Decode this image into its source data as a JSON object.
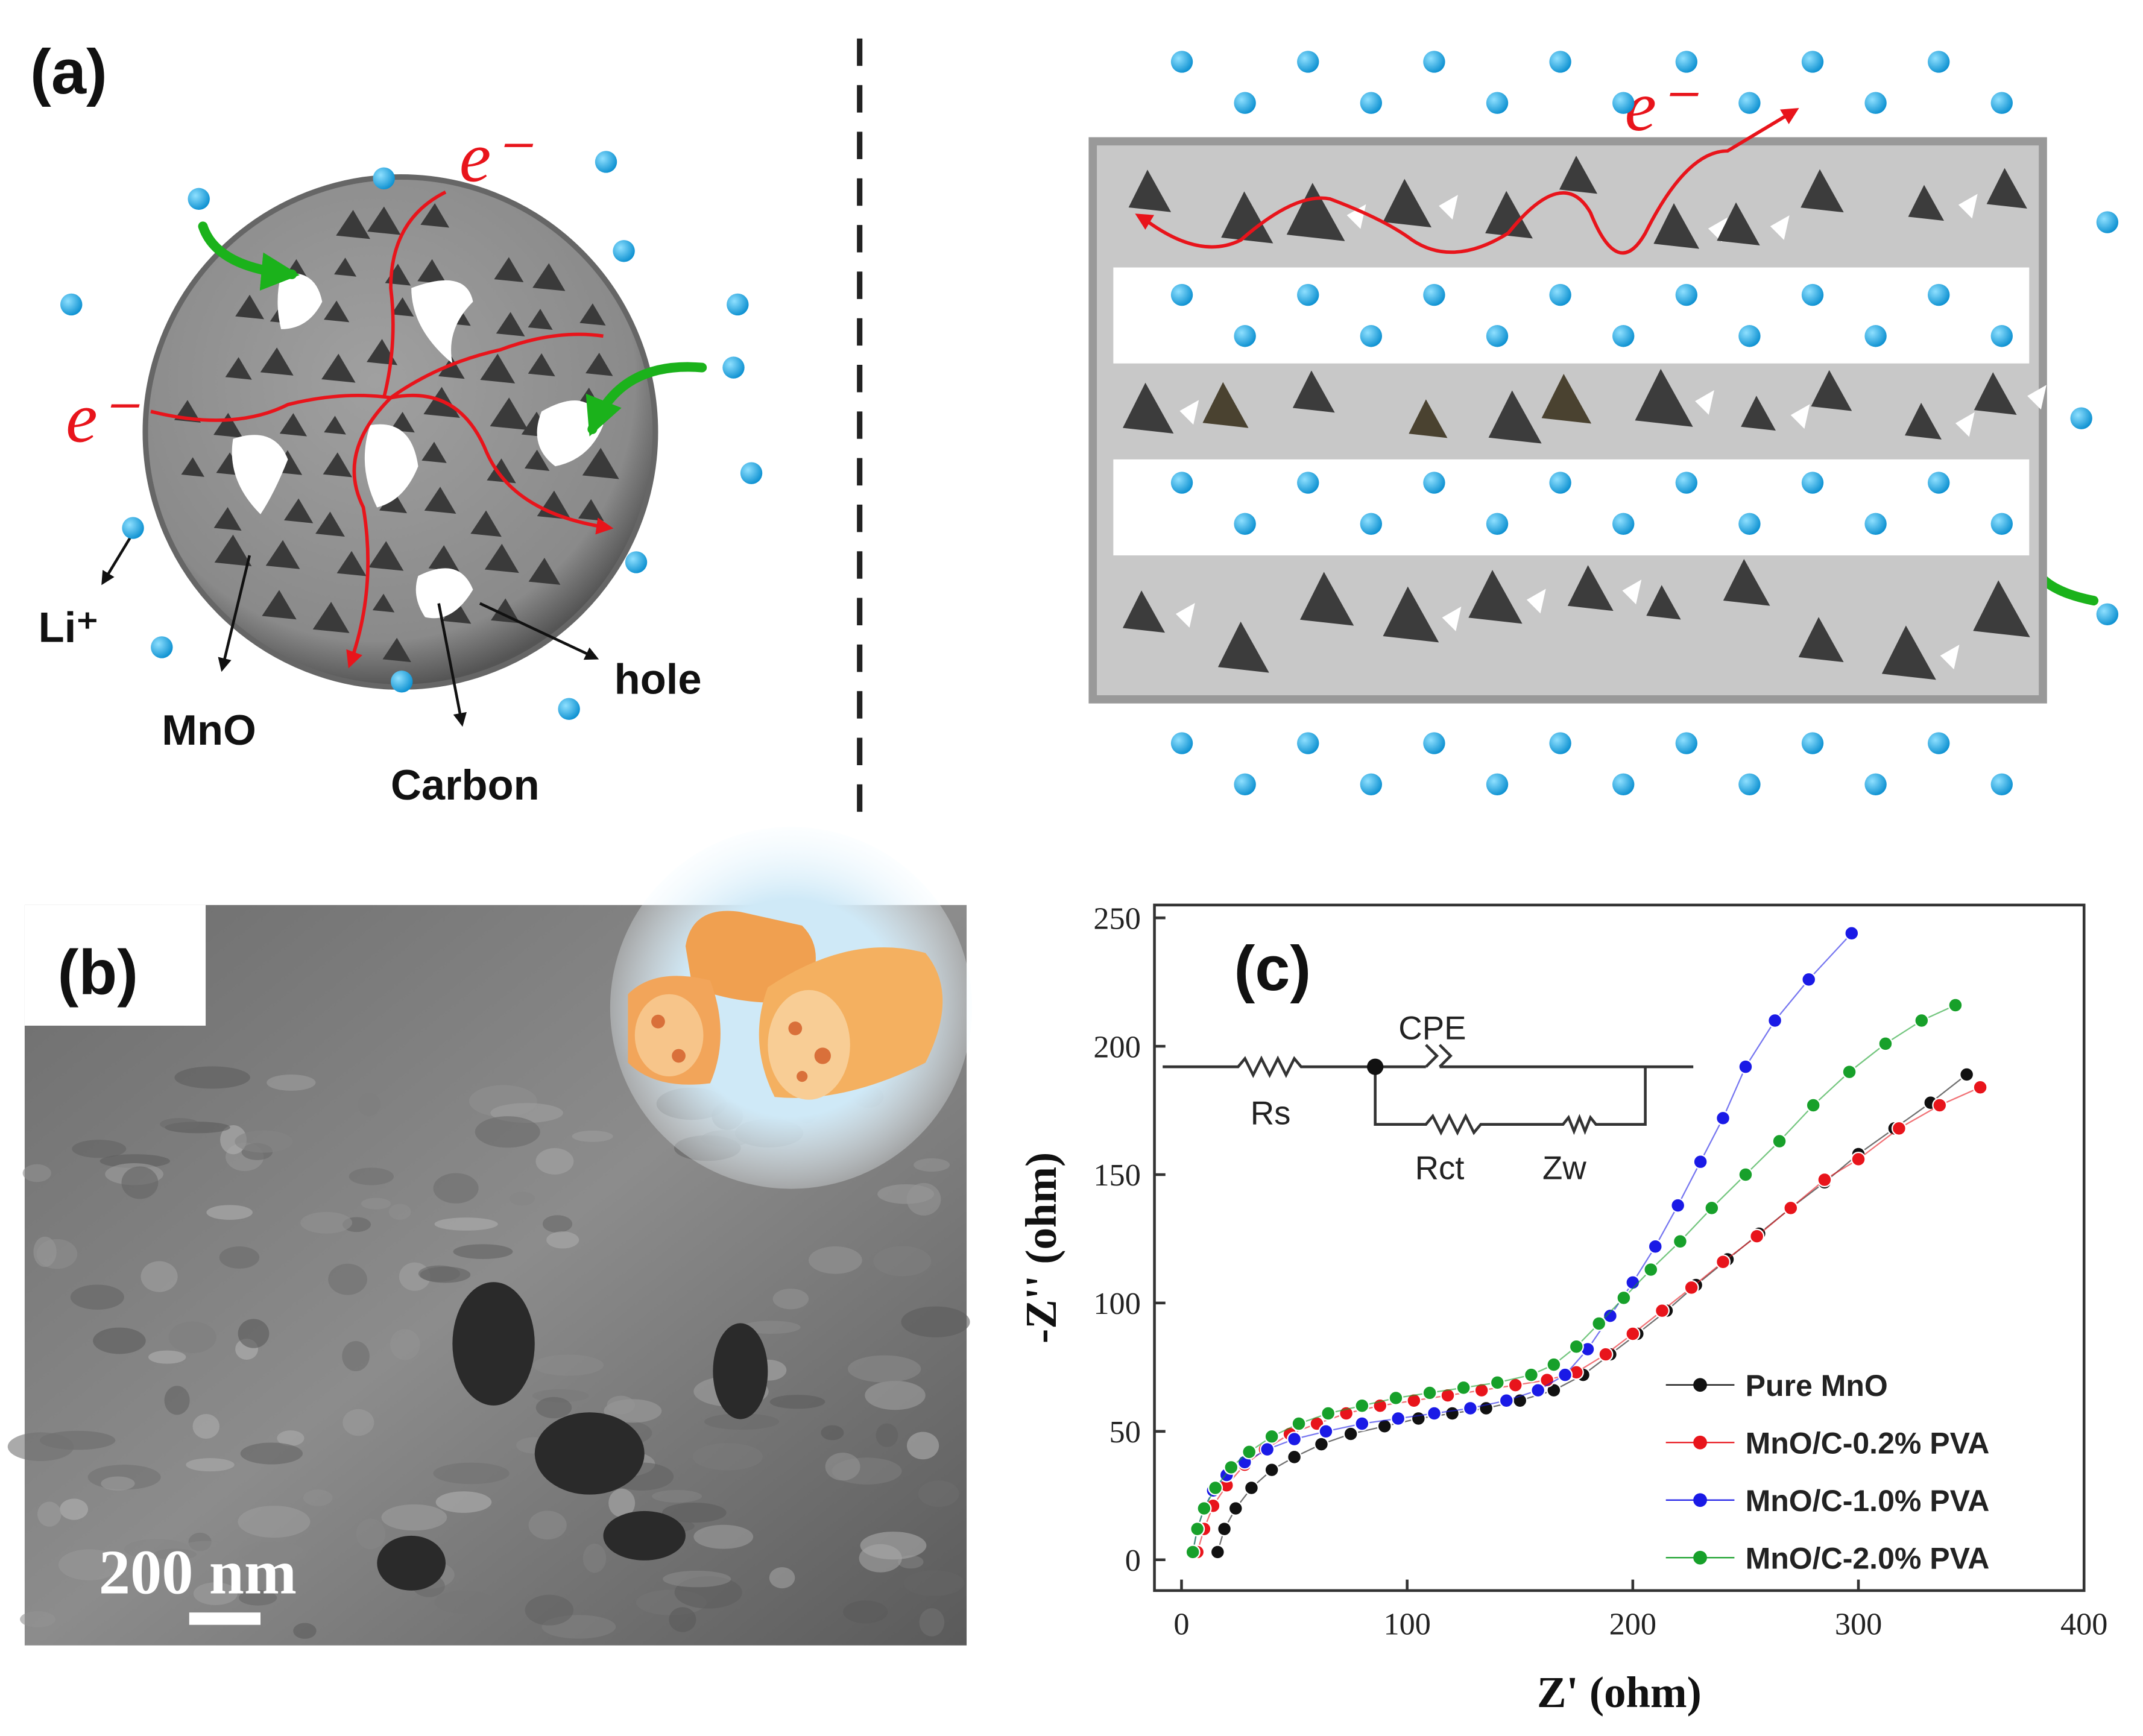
{
  "panels": {
    "a": {
      "label": "(a)",
      "electron_labels": [
        "e⁻",
        "e⁻",
        "e⁻"
      ],
      "li_label": "Li⁺",
      "mno_label": "MnO",
      "carbon_label": "Carbon",
      "hole_label": "hole"
    },
    "b": {
      "label": "(b)",
      "scale_bar": "200 nm"
    }
  },
  "chart_data": {
    "type": "line",
    "panel_label": "(c)",
    "xlabel": "Z' (ohm)",
    "ylabel": "-Z'' (ohm)",
    "circuit_labels": [
      "Rs",
      "CPE",
      "Rct",
      "Zw"
    ],
    "xlim": [
      -12,
      400
    ],
    "ylim": [
      -12,
      255
    ],
    "xticks": [
      0,
      100,
      200,
      300,
      400
    ],
    "yticks": [
      0,
      50,
      100,
      150,
      200,
      250
    ],
    "legend": "lower right",
    "markers": true,
    "series": [
      {
        "name": "Pure MnO",
        "color": "#111111",
        "x": [
          16,
          19,
          24,
          31,
          40,
          50,
          62,
          75,
          90,
          105,
          120,
          135,
          150,
          165,
          178,
          190,
          202,
          215,
          228,
          242,
          256,
          270,
          285,
          300,
          316,
          332,
          348
        ],
        "values": [
          3,
          12,
          20,
          28,
          35,
          40,
          45,
          49,
          52,
          55,
          57,
          59,
          62,
          66,
          72,
          80,
          88,
          97,
          107,
          117,
          127,
          137,
          147,
          158,
          168,
          178,
          189
        ]
      },
      {
        "name": "MnO/C-0.2% PVA",
        "color": "#e8141b",
        "x": [
          7,
          10,
          14,
          20,
          28,
          37,
          48,
          60,
          73,
          88,
          103,
          118,
          133,
          148,
          162,
          175,
          188,
          200,
          213,
          226,
          240,
          255,
          270,
          285,
          300,
          318,
          336,
          354
        ],
        "values": [
          3,
          12,
          21,
          29,
          37,
          43,
          49,
          53,
          57,
          60,
          62,
          64,
          66,
          68,
          70,
          73,
          80,
          88,
          97,
          106,
          116,
          126,
          137,
          148,
          156,
          168,
          177,
          184
        ]
      },
      {
        "name": "MnO/C-1.0% PVA",
        "color": "#1a1ae6",
        "x": [
          5,
          7,
          10,
          14,
          20,
          28,
          38,
          50,
          64,
          80,
          96,
          112,
          128,
          144,
          158,
          170,
          180,
          190,
          200,
          210,
          220,
          230,
          240,
          250,
          263,
          278,
          297
        ],
        "values": [
          3,
          12,
          20,
          27,
          33,
          38,
          43,
          47,
          50,
          53,
          55,
          57,
          59,
          62,
          66,
          72,
          82,
          95,
          108,
          122,
          138,
          155,
          172,
          192,
          210,
          226,
          244
        ]
      },
      {
        "name": "MnO/C-2.0% PVA",
        "color": "#17a02a",
        "x": [
          5,
          7,
          10,
          15,
          22,
          30,
          40,
          52,
          65,
          80,
          95,
          110,
          125,
          140,
          155,
          165,
          175,
          185,
          196,
          208,
          221,
          235,
          250,
          265,
          280,
          296,
          312,
          328,
          343
        ],
        "values": [
          3,
          12,
          20,
          28,
          36,
          42,
          48,
          53,
          57,
          60,
          63,
          65,
          67,
          69,
          72,
          76,
          83,
          92,
          102,
          113,
          124,
          137,
          150,
          163,
          177,
          190,
          201,
          210,
          216
        ]
      }
    ]
  }
}
